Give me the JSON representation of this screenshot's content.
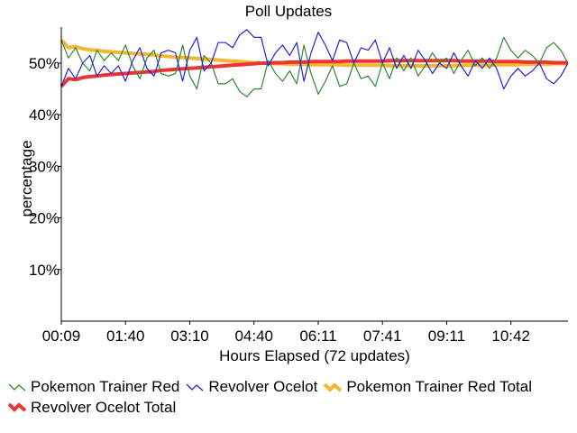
{
  "chart_data": {
    "type": "line",
    "title": "Poll Updates",
    "xlabel": "Hours Elapsed (72 updates)",
    "ylabel": "percentage",
    "ylim": [
      0,
      57
    ],
    "xlim": [
      0,
      71
    ],
    "x_ticks": [
      {
        "index": 0,
        "label": "00:09"
      },
      {
        "index": 9,
        "label": "01:40"
      },
      {
        "index": 18,
        "label": "03:10"
      },
      {
        "index": 27,
        "label": "04:40"
      },
      {
        "index": 36,
        "label": "06:11"
      },
      {
        "index": 45,
        "label": "07:41"
      },
      {
        "index": 54,
        "label": "09:11"
      },
      {
        "index": 63,
        "label": "10:42"
      }
    ],
    "y_ticks": [
      {
        "value": 10,
        "label": "10%"
      },
      {
        "value": 20,
        "label": "20%"
      },
      {
        "value": 30,
        "label": "30%"
      },
      {
        "value": 40,
        "label": "40%"
      },
      {
        "value": 50,
        "label": "50%"
      }
    ],
    "grid": false,
    "legend_position": "bottom",
    "series": [
      {
        "name": "Pokemon Trainer Red",
        "color": "#2e8b2e",
        "style": "thin",
        "values": [
          54.5,
          51.0,
          53.0,
          50.0,
          48.5,
          52.5,
          50.5,
          52.0,
          50.5,
          53.5,
          49.5,
          47.0,
          51.0,
          52.5,
          48.0,
          47.5,
          48.0,
          53.5,
          47.5,
          45.0,
          51.5,
          50.0,
          46.0,
          46.0,
          47.0,
          44.5,
          43.5,
          45.0,
          45.0,
          50.5,
          48.0,
          46.5,
          48.5,
          46.0,
          53.5,
          48.0,
          44.0,
          46.5,
          49.5,
          45.5,
          46.0,
          50.0,
          47.0,
          47.5,
          45.5,
          50.0,
          47.0,
          51.0,
          48.5,
          51.0,
          47.5,
          49.5,
          52.0,
          50.0,
          51.0,
          48.0,
          50.5,
          52.5,
          49.5,
          51.0,
          49.0,
          51.0,
          55.0,
          52.5,
          51.0,
          52.5,
          51.5,
          50.0,
          53.0,
          54.0,
          52.5,
          50.0
        ]
      },
      {
        "name": "Revolver Ocelot",
        "color": "#2222dd",
        "style": "thin",
        "values": [
          45.5,
          49.0,
          47.0,
          50.0,
          51.5,
          47.5,
          49.5,
          48.0,
          49.5,
          46.5,
          50.5,
          53.0,
          49.0,
          47.5,
          52.0,
          52.5,
          52.0,
          46.5,
          52.5,
          55.0,
          48.5,
          50.0,
          54.0,
          54.0,
          53.0,
          55.5,
          56.5,
          55.0,
          55.0,
          49.5,
          52.0,
          53.5,
          51.5,
          54.0,
          46.5,
          52.0,
          56.0,
          53.5,
          50.5,
          54.5,
          54.0,
          50.0,
          53.0,
          52.5,
          54.5,
          50.0,
          53.0,
          49.0,
          51.5,
          49.0,
          52.5,
          50.5,
          48.0,
          50.0,
          49.0,
          52.0,
          49.5,
          47.5,
          50.5,
          49.0,
          51.0,
          49.0,
          45.0,
          47.5,
          49.0,
          47.5,
          48.5,
          50.0,
          47.0,
          46.0,
          47.5,
          50.0
        ]
      },
      {
        "name": "Pokemon Trainer Red Total",
        "color": "#f5b731",
        "style": "thick",
        "values": [
          54.5,
          53.0,
          53.2,
          52.8,
          52.6,
          52.5,
          52.3,
          52.2,
          52.1,
          52.0,
          51.9,
          51.8,
          51.7,
          51.6,
          51.4,
          51.3,
          51.2,
          51.1,
          51.0,
          50.9,
          50.8,
          50.7,
          50.6,
          50.5,
          50.4,
          50.3,
          50.2,
          50.1,
          50.0,
          50.0,
          49.9,
          49.9,
          49.8,
          49.8,
          49.8,
          49.7,
          49.7,
          49.7,
          49.7,
          49.7,
          49.6,
          49.6,
          49.6,
          49.6,
          49.6,
          49.6,
          49.5,
          49.5,
          49.5,
          49.5,
          49.5,
          49.5,
          49.5,
          49.5,
          49.5,
          49.5,
          49.6,
          49.6,
          49.6,
          49.6,
          49.6,
          49.7,
          49.7,
          49.7,
          49.7,
          49.8,
          49.8,
          49.8,
          49.8,
          49.9,
          49.9,
          49.9
        ]
      },
      {
        "name": "Revolver Ocelot Total",
        "color": "#ee3333",
        "style": "thick",
        "values": [
          45.5,
          47.0,
          46.8,
          47.2,
          47.4,
          47.5,
          47.7,
          47.8,
          47.9,
          48.0,
          48.1,
          48.2,
          48.3,
          48.4,
          48.6,
          48.7,
          48.8,
          48.9,
          49.0,
          49.1,
          49.2,
          49.3,
          49.4,
          49.5,
          49.6,
          49.7,
          49.8,
          49.9,
          50.0,
          50.0,
          50.1,
          50.1,
          50.2,
          50.2,
          50.2,
          50.3,
          50.3,
          50.3,
          50.3,
          50.3,
          50.4,
          50.4,
          50.4,
          50.4,
          50.4,
          50.4,
          50.5,
          50.5,
          50.5,
          50.5,
          50.5,
          50.5,
          50.5,
          50.5,
          50.5,
          50.5,
          50.4,
          50.4,
          50.4,
          50.4,
          50.4,
          50.3,
          50.3,
          50.3,
          50.3,
          50.2,
          50.2,
          50.2,
          50.2,
          50.1,
          50.1,
          50.1
        ]
      }
    ]
  }
}
